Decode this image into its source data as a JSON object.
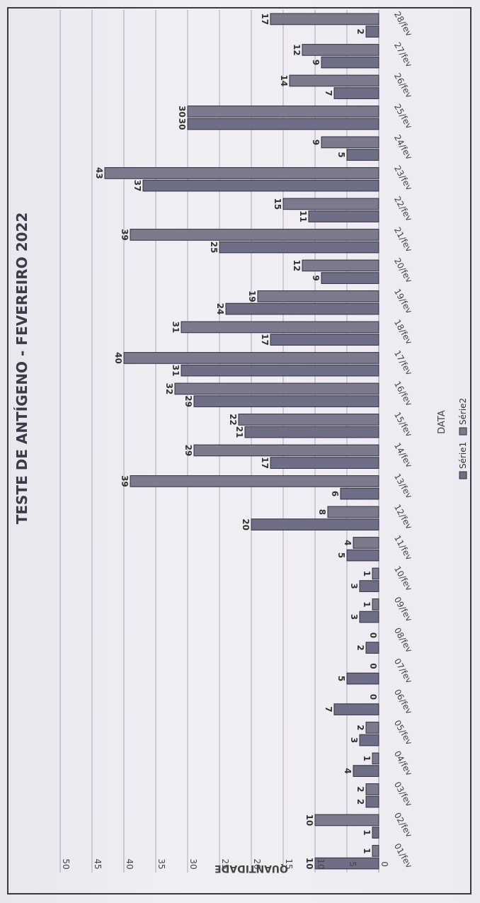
{
  "chart_data": {
    "type": "bar",
    "orientation": "rotated-90",
    "title": "TESTE DE ANTÍGENO - FEVEREIRO 2022",
    "xlabel": "DATA",
    "ylabel": "QUANTIDADE",
    "ylim": [
      0,
      50
    ],
    "yticks": [
      0,
      5,
      10,
      15,
      20,
      25,
      30,
      35,
      40,
      45,
      50
    ],
    "grid": true,
    "legend_position": "bottom",
    "categories": [
      "01/fev",
      "02/fev",
      "03/fev",
      "04/fev",
      "05/fev",
      "06/fev",
      "07/fev",
      "08/fev",
      "09/fev",
      "10/fev",
      "11/fev",
      "12/fev",
      "13/fev",
      "14/fev",
      "15/fev",
      "16/fev",
      "17/fev",
      "18/fev",
      "19/fev",
      "20/fev",
      "21/fev",
      "22/fev",
      "23/fev",
      "24/fev",
      "25/fev",
      "26/fev",
      "27/fev",
      "28/fev"
    ],
    "series": [
      {
        "name": "Série1",
        "color": "#6e6f86",
        "values": [
          10,
          1,
          2,
          4,
          3,
          7,
          5,
          2,
          3,
          3,
          5,
          20,
          6,
          17,
          21,
          29,
          31,
          17,
          24,
          9,
          25,
          11,
          37,
          5,
          30,
          7,
          9,
          2
        ]
      },
      {
        "name": "Série2",
        "color": "#7c7a8d",
        "values": [
          1,
          10,
          2,
          1,
          2,
          0,
          0,
          0,
          1,
          1,
          4,
          8,
          39,
          29,
          22,
          32,
          40,
          31,
          19,
          12,
          39,
          15,
          43,
          9,
          30,
          14,
          12,
          17
        ]
      }
    ]
  }
}
